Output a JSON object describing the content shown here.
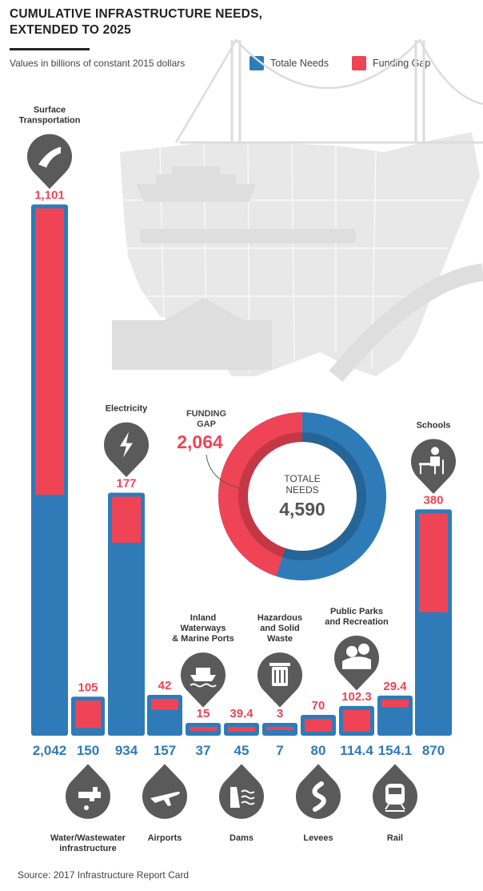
{
  "title_line1": "CUMULATIVE INFRASTRUCTURE NEEDS,",
  "title_line2": "EXTENDED TO 2025",
  "subtitle": "Values in billions of constant 2015 dollars",
  "legend": [
    {
      "label": "Totale Needs",
      "color": "#2e7bb8"
    },
    {
      "label": "Funding Gap",
      "color": "#ef4456"
    }
  ],
  "source": "Source: 2017 Infrastructure Report Card",
  "colors": {
    "needs": "#2e7bb8",
    "gap": "#ef4456",
    "icon": "#5a5a5a",
    "map": "#e8e8e8"
  },
  "donut": {
    "gap_label_line1": "FUNDING",
    "gap_label_line2": "GAP",
    "gap_value": "2,064",
    "center_line1": "TOTALE",
    "center_line2": "NEEDS",
    "center_value": "4,590"
  },
  "chart_data": {
    "type": "bar",
    "title": "CUMULATIVE INFRASTRUCTURE NEEDS, EXTENDED TO 2025",
    "ylabel": "Values in billions of constant 2015 dollars",
    "categories": [
      "Surface Transportation",
      "Water/Wastewater infrastructure",
      "Electricity",
      "Airports",
      "Inland Waterways & Marine Ports",
      "Dams",
      "Hazardous and Solid Waste",
      "Levees",
      "Public Parks and Recreation",
      "Rail",
      "Schools"
    ],
    "series": [
      {
        "name": "Totale Needs",
        "values": [
          2042,
          150,
          934,
          157,
          37,
          45,
          7,
          80,
          114.4,
          154.1,
          870
        ]
      },
      {
        "name": "Funding Gap",
        "values": [
          1101,
          105,
          177,
          42,
          15,
          39.4,
          3,
          70,
          102.3,
          29.4,
          380
        ]
      }
    ],
    "needs_labels": [
      "2,042",
      "150",
      "934",
      "157",
      "37",
      "45",
      "7",
      "80",
      "114.4",
      "154.1",
      "870"
    ],
    "gap_labels": [
      "1,101",
      "105",
      "177",
      "42",
      "15",
      "39.4",
      "3",
      "70",
      "102.3",
      "29.4",
      "380"
    ],
    "category_lines": [
      [
        "Surface",
        "Transportation"
      ],
      [
        "Water/Wastewater",
        "infrastructure"
      ],
      [
        "Electricity"
      ],
      [
        "Airports"
      ],
      [
        "Inland",
        "Waterways",
        "& Marine Ports"
      ],
      [
        "Dams"
      ],
      [
        "Hazardous",
        "and Solid",
        "Waste"
      ],
      [
        "Levees"
      ],
      [
        "Public Parks",
        "and Recreation"
      ],
      [
        "Rail"
      ],
      [
        "Schools"
      ]
    ],
    "icons": [
      "road-icon",
      "faucet-icon",
      "lightning-icon",
      "airplane-icon",
      "ship-icon",
      "dam-icon",
      "trash-can-icon",
      "river-icon",
      "park-icon",
      "train-icon",
      "school-desk-icon"
    ],
    "donut": {
      "total": 4590,
      "gap": 2064
    }
  }
}
